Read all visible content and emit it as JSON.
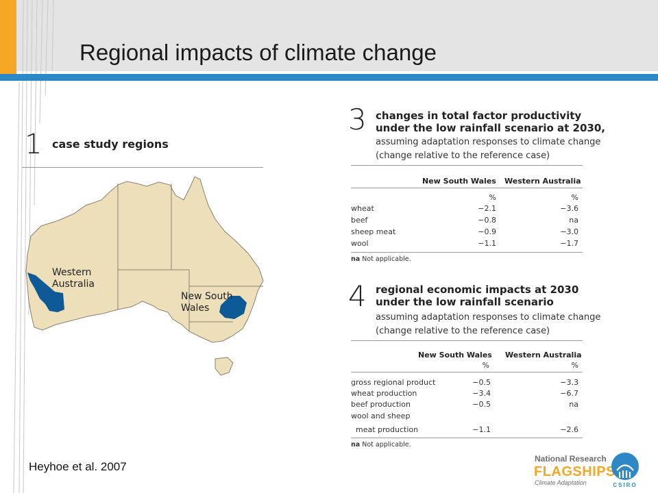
{
  "slide": {
    "title": "Regional impacts of climate change",
    "citation": "Heyhoe et al. 2007"
  },
  "colors": {
    "accent_orange": "#f5a623",
    "accent_blue": "#2e88c7",
    "map_land": "#ecdfb9",
    "region_fill": "#0d5a96"
  },
  "figure1": {
    "number": "1",
    "title": "case study regions",
    "labels": {
      "western_australia": [
        "Western",
        "Australia"
      ],
      "new_south_wales": [
        "New South",
        "Wales"
      ]
    }
  },
  "figure3": {
    "number": "3",
    "title": [
      "changes in total factor productivity",
      "under the low rainfall scenario at 2030,"
    ],
    "subtitle": [
      "assuming adaptation responses to climate change",
      "(change relative to the reference case)"
    ],
    "columns": [
      "New South Wales",
      "Western Australia"
    ],
    "units": [
      "%",
      "%"
    ],
    "rows": [
      {
        "label": "wheat",
        "nsw": "−2.1",
        "wa": "−3.6"
      },
      {
        "label": "beef",
        "nsw": "−0.8",
        "wa": "na"
      },
      {
        "label": "sheep meat",
        "nsw": "−0.9",
        "wa": "−3.0"
      },
      {
        "label": "wool",
        "nsw": "−1.1",
        "wa": "−1.7"
      }
    ],
    "note_abbrev": "na",
    "note_text": " Not applicable."
  },
  "figure4": {
    "number": "4",
    "title": [
      "regional economic impacts at 2030",
      "under the low rainfall scenario"
    ],
    "subtitle": [
      "assuming adaptation responses to climate change",
      "(change relative to the reference case)"
    ],
    "columns": [
      "New South Wales",
      "Western Australia"
    ],
    "units": [
      "%",
      "%"
    ],
    "rows": [
      {
        "label": "gross regional product",
        "nsw": "−0.5",
        "wa": "−3.3"
      },
      {
        "label": "wheat production",
        "nsw": "−3.4",
        "wa": "−6.7"
      },
      {
        "label": "beef production",
        "nsw": "−0.5",
        "wa": "na"
      },
      {
        "label": "wool and sheep",
        "nsw": "",
        "wa": ""
      },
      {
        "label": "  meat production",
        "nsw": "−1.1",
        "wa": "−2.6"
      }
    ],
    "note_abbrev": "na",
    "note_text": " Not applicable."
  },
  "logo": {
    "line1": "National Research",
    "line2": "FLAGSHIPS",
    "line3": "Climate Adaptation",
    "csiro": "CSIRO"
  }
}
